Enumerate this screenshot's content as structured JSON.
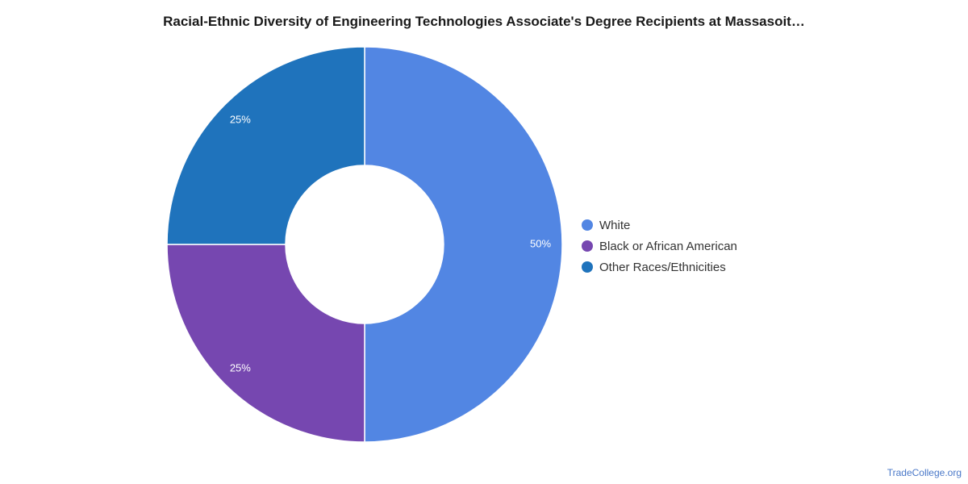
{
  "chart_data": {
    "type": "pie",
    "title": "Racial-Ethnic Diversity of Engineering Technologies Associate's Degree Recipients at Massasoit…",
    "slices": [
      {
        "label": "White",
        "value": 50,
        "value_label": "50%",
        "color": "#5286e3"
      },
      {
        "label": "Black or African American",
        "value": 25,
        "value_label": "25%",
        "color": "#7647b0"
      },
      {
        "label": "Other Races/Ethnicities",
        "value": 25,
        "value_label": "25%",
        "color": "#1f73bc"
      }
    ],
    "donut": true,
    "legend_position": "right"
  },
  "watermark": "TradeCollege.org"
}
